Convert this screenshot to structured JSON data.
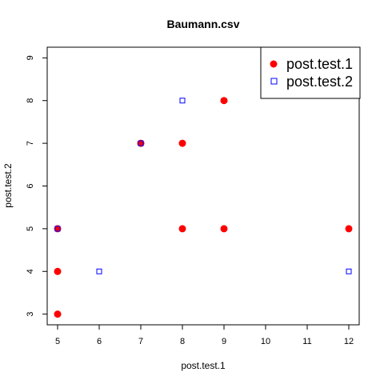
{
  "chart_data": {
    "type": "scatter",
    "title": "Baumann.csv",
    "xlabel": "post.test.1",
    "ylabel": "post.test.2",
    "xlim": [
      4.75,
      12.25
    ],
    "ylim": [
      2.75,
      9.25
    ],
    "xticks": [
      5,
      6,
      7,
      8,
      9,
      10,
      11,
      12
    ],
    "yticks": [
      3,
      4,
      5,
      6,
      7,
      8,
      9
    ],
    "legend_position": "top-right",
    "series": [
      {
        "name": "post.test.1",
        "marker": "filled-circle",
        "color": "#ff0000",
        "points": [
          [
            5,
            3
          ],
          [
            5,
            4
          ],
          [
            5,
            5
          ],
          [
            7,
            7
          ],
          [
            8,
            5
          ],
          [
            8,
            7
          ],
          [
            9,
            5
          ],
          [
            9,
            8
          ],
          [
            12,
            5
          ]
        ]
      },
      {
        "name": "post.test.2",
        "marker": "open-square",
        "color": "#0000ff",
        "points": [
          [
            5,
            5
          ],
          [
            6,
            4
          ],
          [
            7,
            7
          ],
          [
            8,
            8
          ],
          [
            12,
            4
          ]
        ]
      }
    ]
  }
}
